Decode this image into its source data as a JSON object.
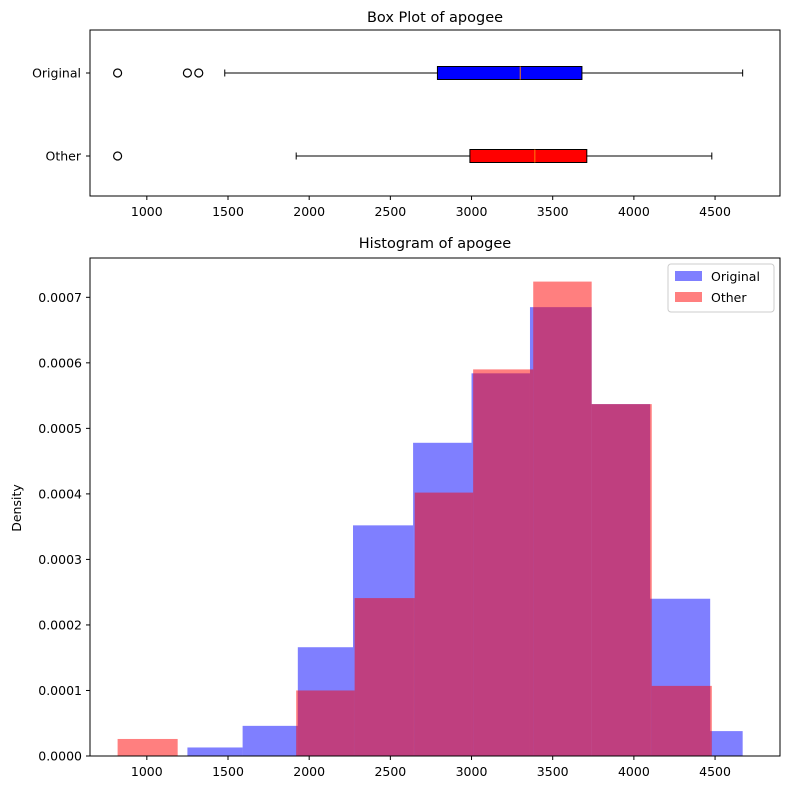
{
  "chart_data": [
    {
      "type": "box",
      "title": "Box Plot of apogee",
      "xlabel": "",
      "ylabel": "",
      "xlim": [
        650,
        4900
      ],
      "xticks": [
        1000,
        1500,
        2000,
        2500,
        3000,
        3500,
        4000,
        4500
      ],
      "grid": false,
      "series": [
        {
          "name": "Original",
          "color": "#0000ff",
          "whisker_low": 1480,
          "q1": 2790,
          "median": 3300,
          "q3": 3680,
          "whisker_high": 4670,
          "outliers": [
            820,
            1250,
            1320
          ]
        },
        {
          "name": "Other",
          "color": "#ff0000",
          "whisker_low": 1920,
          "q1": 2990,
          "median": 3390,
          "q3": 3710,
          "whisker_high": 4480,
          "outliers": [
            820
          ]
        }
      ]
    },
    {
      "type": "histogram",
      "title": "Histogram of apogee",
      "xlabel": "",
      "ylabel": "Density",
      "xlim": [
        650,
        4900
      ],
      "ylim": [
        0,
        0.00076
      ],
      "xticks": [
        1000,
        1500,
        2000,
        2500,
        3000,
        3500,
        4000,
        4500
      ],
      "yticks": [
        "0.0000",
        "0.0001",
        "0.0002",
        "0.0003",
        "0.0004",
        "0.0005",
        "0.0006",
        "0.0007"
      ],
      "legend_position": "top-right",
      "grid": false,
      "series": [
        {
          "name": "Original",
          "color": "#0000ff",
          "opacity": 0.5,
          "bins": [
            {
              "x0": 1250,
              "x1": 1590,
              "density": 1.3e-05
            },
            {
              "x0": 1590,
              "x1": 1930,
              "density": 4.6e-05
            },
            {
              "x0": 1930,
              "x1": 2270,
              "density": 0.000166
            },
            {
              "x0": 2270,
              "x1": 2640,
              "density": 0.000352
            },
            {
              "x0": 2640,
              "x1": 3000,
              "density": 0.000478
            },
            {
              "x0": 3000,
              "x1": 3360,
              "density": 0.000584
            },
            {
              "x0": 3360,
              "x1": 3740,
              "density": 0.000685
            },
            {
              "x0": 3740,
              "x1": 4100,
              "density": 0.000537
            },
            {
              "x0": 4100,
              "x1": 4470,
              "density": 0.00024
            },
            {
              "x0": 4470,
              "x1": 4670,
              "density": 3.8e-05
            }
          ]
        },
        {
          "name": "Other",
          "color": "#ff0000",
          "opacity": 0.5,
          "bins": [
            {
              "x0": 820,
              "x1": 1190,
              "density": 2.6e-05
            },
            {
              "x0": 1920,
              "x1": 2280,
              "density": 0.0001
            },
            {
              "x0": 2280,
              "x1": 2650,
              "density": 0.000241
            },
            {
              "x0": 2650,
              "x1": 3010,
              "density": 0.000402
            },
            {
              "x0": 3010,
              "x1": 3380,
              "density": 0.00059
            },
            {
              "x0": 3380,
              "x1": 3740,
              "density": 0.000724
            },
            {
              "x0": 3740,
              "x1": 4110,
              "density": 0.000537
            },
            {
              "x0": 4110,
              "x1": 4480,
              "density": 0.000107
            }
          ]
        }
      ]
    }
  ]
}
